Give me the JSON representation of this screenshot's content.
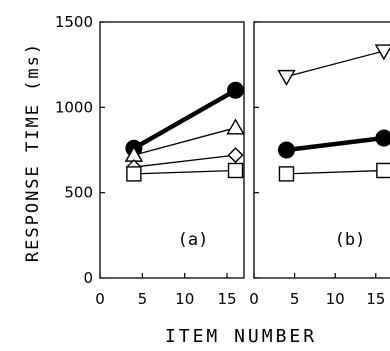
{
  "chart_data": {
    "type": "line",
    "ylabel": "RESPONSE TIME (ms)",
    "xlabel": "ITEM NUMBER",
    "ylim": [
      0,
      1500
    ],
    "xlim": [
      0,
      17
    ],
    "yticks": [
      "0",
      "500",
      "1000",
      "1500"
    ],
    "xticks": [
      "0",
      "5",
      "10",
      "15"
    ],
    "grid": false,
    "panels": [
      {
        "label": "(a)",
        "series": [
          {
            "marker": "filled-circle",
            "line": "thick",
            "x": [
              4,
              16
            ],
            "y": [
              760,
              1100
            ]
          },
          {
            "marker": "triangle-up",
            "line": "thin",
            "x": [
              4,
              16
            ],
            "y": [
              720,
              880
            ]
          },
          {
            "marker": "diamond",
            "line": "thin",
            "x": [
              4,
              16
            ],
            "y": [
              650,
              720
            ]
          },
          {
            "marker": "square",
            "line": "thin",
            "x": [
              4,
              16
            ],
            "y": [
              610,
              630
            ]
          }
        ]
      },
      {
        "label": "(b)",
        "series": [
          {
            "marker": "triangle-down",
            "line": "thin",
            "x": [
              4,
              16
            ],
            "y": [
              1180,
              1330
            ]
          },
          {
            "marker": "filled-circle",
            "line": "thick",
            "x": [
              4,
              16
            ],
            "y": [
              750,
              820
            ]
          },
          {
            "marker": "square",
            "line": "thin",
            "x": [
              4,
              16
            ],
            "y": [
              610,
              630
            ]
          }
        ]
      }
    ]
  }
}
